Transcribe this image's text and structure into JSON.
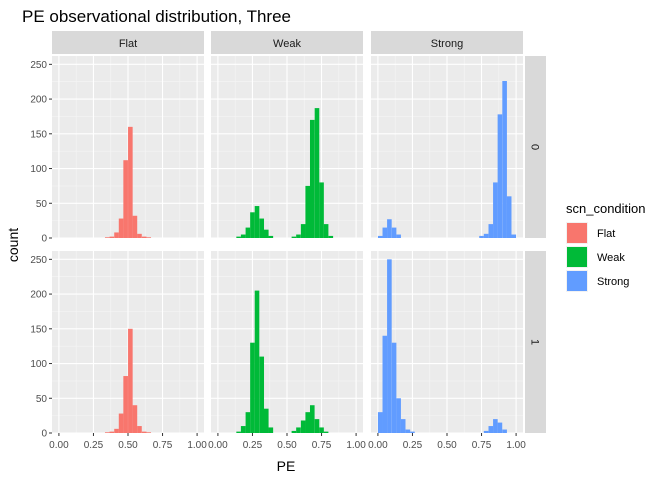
{
  "chart_data": {
    "type": "histogram-facet",
    "title": "PE observational distribution, Three",
    "xlabel": "PE",
    "ylabel": "count",
    "xlim": [
      -0.05,
      1.05
    ],
    "ylim": [
      0,
      262
    ],
    "xticks": [
      "0.00",
      "0.25",
      "0.50",
      "0.75",
      "1.00"
    ],
    "xtick_values": [
      0,
      0.25,
      0.5,
      0.75,
      1.0
    ],
    "yticks": [
      "0",
      "50",
      "100",
      "150",
      "200",
      "250"
    ],
    "ytick_values": [
      0,
      50,
      100,
      150,
      200,
      250
    ],
    "bin_width": 0.0333,
    "grid": true,
    "legend": {
      "title": "scn_condition",
      "position": "right",
      "entries": [
        {
          "label": "Flat",
          "color": "#F8766D"
        },
        {
          "label": "Weak",
          "color": "#00BA38"
        },
        {
          "label": "Strong",
          "color": "#619CFF"
        }
      ]
    },
    "col_facets": [
      "Flat",
      "Weak",
      "Strong"
    ],
    "row_facets": [
      "0",
      "1"
    ],
    "panels": [
      {
        "row": "0",
        "col": "Flat",
        "color": "#F8766D",
        "bins": [
          [
            0.35,
            1
          ],
          [
            0.383,
            2
          ],
          [
            0.417,
            8
          ],
          [
            0.45,
            28
          ],
          [
            0.483,
            112
          ],
          [
            0.517,
            160
          ],
          [
            0.55,
            32
          ],
          [
            0.583,
            6
          ],
          [
            0.617,
            2
          ],
          [
            0.65,
            1
          ]
        ]
      },
      {
        "row": "0",
        "col": "Weak",
        "color": "#00BA38",
        "bins": [
          [
            0.15,
            2
          ],
          [
            0.183,
            5
          ],
          [
            0.217,
            15
          ],
          [
            0.25,
            37
          ],
          [
            0.283,
            46
          ],
          [
            0.317,
            28
          ],
          [
            0.35,
            12
          ],
          [
            0.383,
            3
          ],
          [
            0.55,
            2
          ],
          [
            0.583,
            5
          ],
          [
            0.617,
            20
          ],
          [
            0.65,
            75
          ],
          [
            0.683,
            170
          ],
          [
            0.717,
            187
          ],
          [
            0.75,
            80
          ],
          [
            0.783,
            20
          ],
          [
            0.817,
            3
          ]
        ]
      },
      {
        "row": "0",
        "col": "Strong",
        "color": "#619CFF",
        "bins": [
          [
            0.017,
            3
          ],
          [
            0.05,
            15
          ],
          [
            0.083,
            27
          ],
          [
            0.117,
            15
          ],
          [
            0.15,
            5
          ],
          [
            0.75,
            3
          ],
          [
            0.783,
            6
          ],
          [
            0.817,
            20
          ],
          [
            0.85,
            80
          ],
          [
            0.883,
            178
          ],
          [
            0.917,
            226
          ],
          [
            0.95,
            60
          ],
          [
            0.983,
            5
          ]
        ]
      },
      {
        "row": "1",
        "col": "Flat",
        "color": "#F8766D",
        "bins": [
          [
            0.35,
            1
          ],
          [
            0.383,
            2
          ],
          [
            0.417,
            6
          ],
          [
            0.45,
            28
          ],
          [
            0.483,
            82
          ],
          [
            0.517,
            150
          ],
          [
            0.55,
            40
          ],
          [
            0.583,
            10
          ],
          [
            0.617,
            2
          ],
          [
            0.65,
            1
          ]
        ]
      },
      {
        "row": "1",
        "col": "Weak",
        "color": "#00BA38",
        "bins": [
          [
            0.15,
            2
          ],
          [
            0.183,
            10
          ],
          [
            0.217,
            30
          ],
          [
            0.25,
            130
          ],
          [
            0.283,
            205
          ],
          [
            0.317,
            110
          ],
          [
            0.35,
            35
          ],
          [
            0.383,
            8
          ],
          [
            0.55,
            3
          ],
          [
            0.583,
            8
          ],
          [
            0.617,
            18
          ],
          [
            0.65,
            30
          ],
          [
            0.683,
            40
          ],
          [
            0.717,
            20
          ],
          [
            0.75,
            8
          ],
          [
            0.783,
            2
          ]
        ]
      },
      {
        "row": "1",
        "col": "Strong",
        "color": "#619CFF",
        "bins": [
          [
            0.017,
            30
          ],
          [
            0.05,
            140
          ],
          [
            0.083,
            250
          ],
          [
            0.117,
            130
          ],
          [
            0.15,
            50
          ],
          [
            0.183,
            20
          ],
          [
            0.217,
            5
          ],
          [
            0.25,
            2
          ],
          [
            0.783,
            3
          ],
          [
            0.817,
            10
          ],
          [
            0.85,
            20
          ],
          [
            0.883,
            15
          ],
          [
            0.917,
            5
          ]
        ]
      }
    ]
  }
}
